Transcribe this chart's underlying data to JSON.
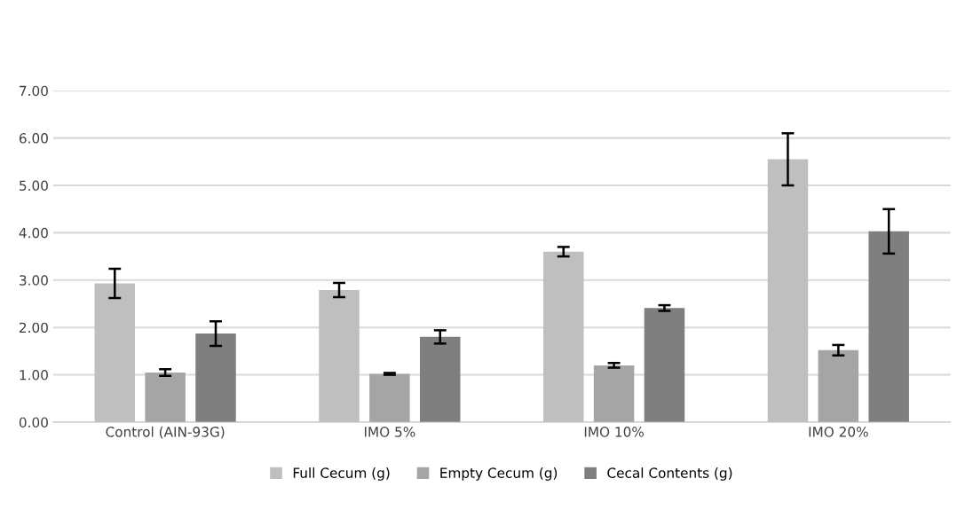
{
  "chart_data": {
    "type": "bar",
    "categories": [
      "Control (AIN-93G)",
      "IMO 5%",
      "IMO 10%",
      "IMO 20%"
    ],
    "series": [
      {
        "name": "Full Cecum (g)",
        "color": "#bfbfbf",
        "values": [
          2.93,
          2.79,
          3.6,
          5.55
        ],
        "errors": [
          0.31,
          0.15,
          0.1,
          0.55
        ]
      },
      {
        "name": "Empty Cecum (g)",
        "color": "#a5a5a5",
        "values": [
          1.05,
          1.02,
          1.2,
          1.52
        ],
        "errors": [
          0.07,
          0.02,
          0.05,
          0.11
        ]
      },
      {
        "name": "Cecal Contents (g)",
        "color": "#7f7f7f",
        "values": [
          1.87,
          1.8,
          2.41,
          4.03
        ],
        "errors": [
          0.26,
          0.14,
          0.06,
          0.47
        ]
      }
    ],
    "ylim": [
      0,
      7
    ],
    "yticks": [
      {
        "value": 0,
        "label": "0.00"
      },
      {
        "value": 1,
        "label": "1.00"
      },
      {
        "value": 2,
        "label": "2.00"
      },
      {
        "value": 3,
        "label": "3.00"
      },
      {
        "value": 4,
        "label": "4.00"
      },
      {
        "value": 5,
        "label": "5.00"
      },
      {
        "value": 6,
        "label": "6.00"
      },
      {
        "value": 7,
        "label": "7.00"
      }
    ],
    "grid": "y",
    "legend": "bottom"
  }
}
